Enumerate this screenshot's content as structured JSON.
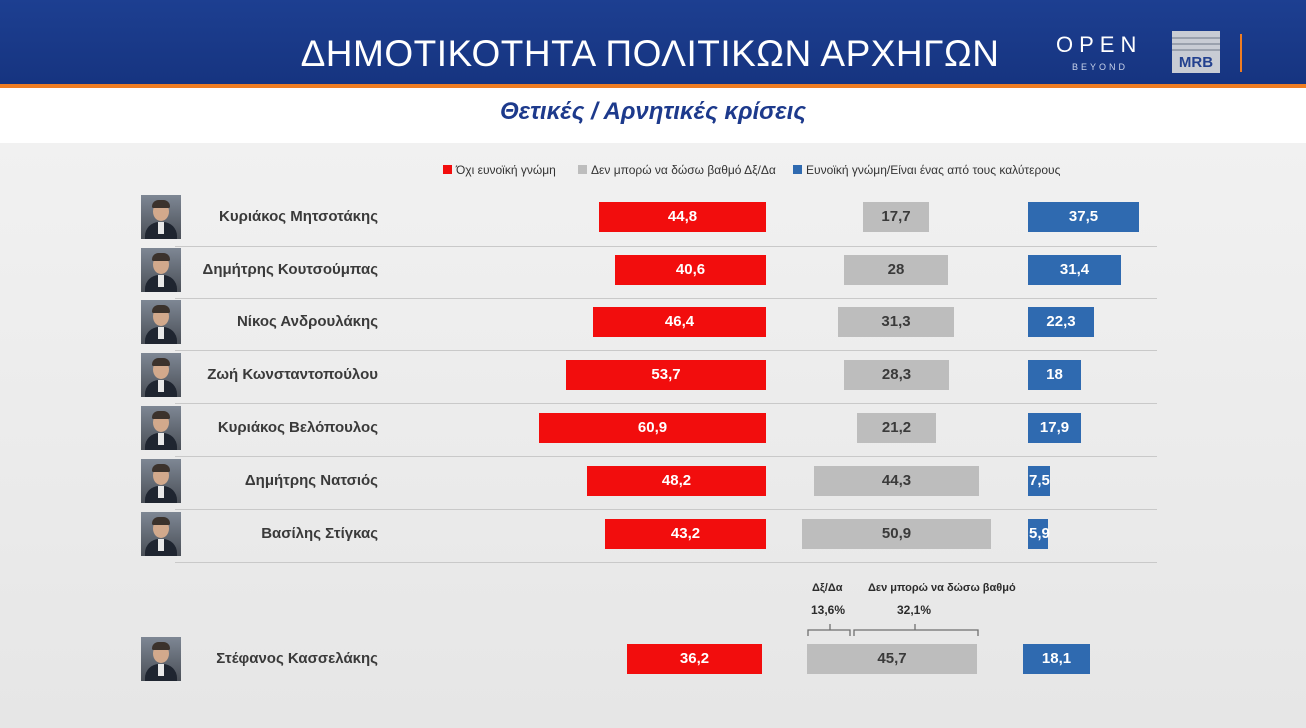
{
  "header": {
    "title": "ΔΗΜΟΤΙΚΟΤΗΤΑ ΠΟΛΙΤΙΚΩΝ ΑΡΧΗΓΩΝ",
    "logo_open": "OPEN",
    "logo_beyond": "BEYOND",
    "logo_mrb": "MRB"
  },
  "subtitle": "Θετικές / Αρνητικές κρίσεις",
  "colors": {
    "negative": "#f20d0d",
    "neutral": "#bdbdbd",
    "positive": "#2f6ab0",
    "header": "#1d3f91",
    "accent": "#ef7d22"
  },
  "chart_data": {
    "type": "bar",
    "orientation": "horizontal",
    "layout": "diverging-three-column",
    "legend": [
      "Όχι ευνοϊκή γνώμη",
      "Δεν μπορώ να δώσω βαθμό Δξ/Δα",
      "Ευνοϊκή γνώμη/Είναι ένας από τους καλύτερους"
    ],
    "categories": [
      "Κυριάκος Μητσοτάκης",
      "Δημήτρης Κουτσούμπας",
      "Νίκος Ανδρουλάκης",
      "Ζωή Κωνσταντοπούλου",
      "Κυριάκος Βελόπουλος",
      "Δημήτρης Νατσιός",
      "Βασίλης Στίγκας",
      "Στέφανος Κασσελάκης"
    ],
    "series": [
      {
        "name": "Όχι ευνοϊκή γνώμη",
        "labels": [
          "44,8",
          "40,6",
          "46,4",
          "53,7",
          "60,9",
          "48,2",
          "43,2",
          "36,2"
        ],
        "values": [
          44.8,
          40.6,
          46.4,
          53.7,
          60.9,
          48.2,
          43.2,
          36.2
        ]
      },
      {
        "name": "Δεν μπορώ να δώσω βαθμό Δξ/Δα",
        "labels": [
          "17,7",
          "28",
          "31,3",
          "28,3",
          "21,2",
          "44,3",
          "50,9",
          "45,7"
        ],
        "values": [
          17.7,
          28,
          31.3,
          28.3,
          21.2,
          44.3,
          50.9,
          45.7
        ]
      },
      {
        "name": "Ευνοϊκή γνώμη/Είναι ένας από τους καλύτερους",
        "labels": [
          "37,5",
          "31,4",
          "22,3",
          "18",
          "17,9",
          "7,5",
          "5,9",
          "18,1"
        ],
        "values": [
          37.5,
          31.4,
          22.3,
          18,
          17.9,
          7.5,
          5.9,
          18.1
        ]
      }
    ],
    "annotation": {
      "left_label": "Δξ/Δα",
      "left_value": "13,6%",
      "right_label": "Δεν μπορώ να δώσω βαθμό",
      "right_value": "32,1%"
    }
  }
}
